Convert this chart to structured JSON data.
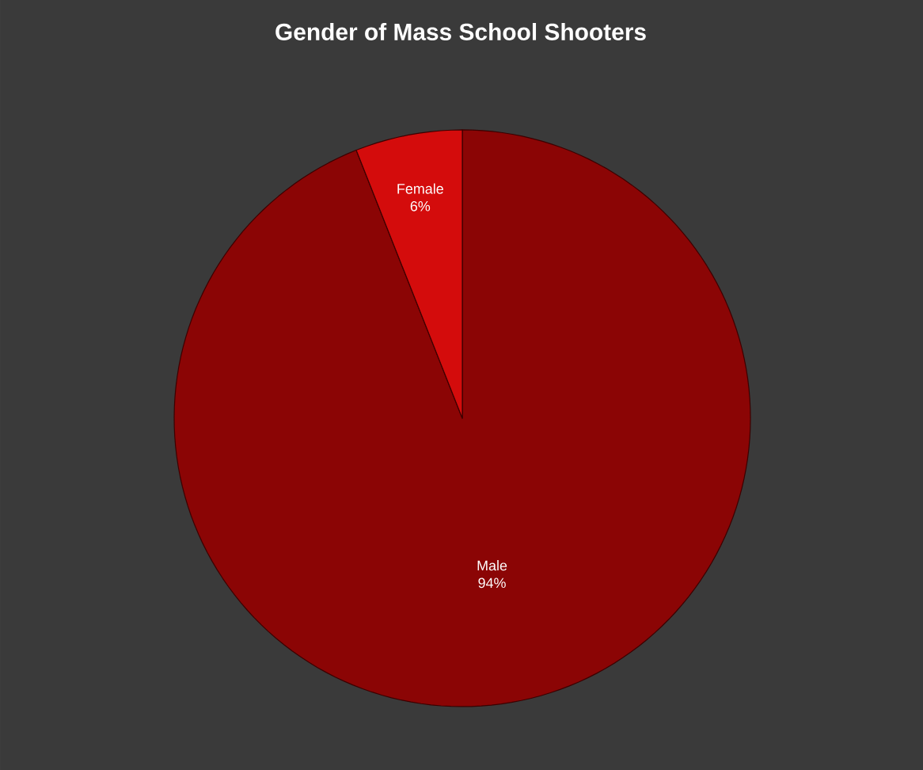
{
  "chart_data": {
    "type": "pie",
    "title": "Gender of Mass School Shooters",
    "categories": [
      "Male",
      "Female"
    ],
    "values": [
      94,
      6
    ],
    "value_labels": [
      "94%",
      "6%"
    ],
    "colors": [
      "#8b0505",
      "#d40c0c"
    ]
  }
}
